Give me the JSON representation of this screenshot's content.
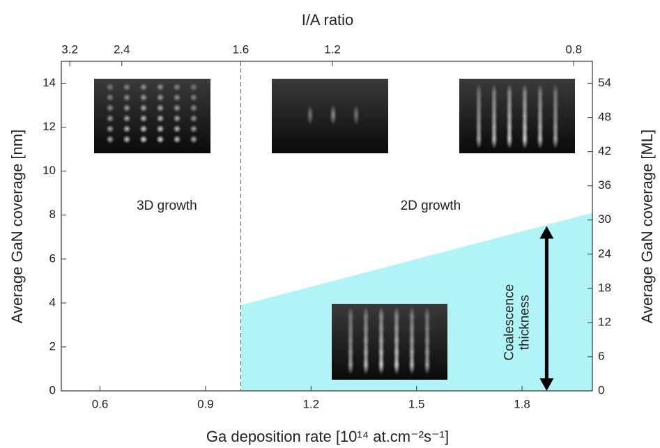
{
  "chart_data": {
    "type": "area",
    "title": "I/A ratio",
    "xlabel": "Ga deposition rate [10¹⁴ at.cm⁻²s⁻¹]",
    "ylabel": "Average GaN coverage [nm]",
    "y2label": "Average GaN coverage [ML]",
    "xlim": [
      0.49,
      2.0
    ],
    "xticks": [
      0.6,
      0.9,
      1.2,
      1.5,
      1.8
    ],
    "ylim": [
      0,
      15
    ],
    "yticks": [
      0,
      2,
      4,
      6,
      8,
      10,
      12,
      14
    ],
    "y2lim": [
      0,
      57.86
    ],
    "y2ticks": [
      0,
      6,
      12,
      18,
      24,
      30,
      36,
      42,
      48,
      54
    ],
    "x2ticks": [
      3.2,
      2.4,
      1.6,
      1.2,
      0.8
    ],
    "x2tick_at_x": [
      0.514,
      0.662,
      1.0,
      1.261,
      1.947
    ],
    "series": [
      {
        "color": "#b0f4f7",
        "x": [
          1.0,
          2.0
        ],
        "values": [
          3.9,
          8.1
        ]
      }
    ],
    "boundary_x": 1.0,
    "arrow": {
      "x": 1.87,
      "y": [
        0,
        7.5
      ],
      "label": "Coalescence thickness"
    },
    "annotations": [
      {
        "text": "3D growth",
        "x": 0.79,
        "y": 8.4
      },
      {
        "text": "2D growth",
        "x": 1.54,
        "y": 8.4
      }
    ]
  }
}
